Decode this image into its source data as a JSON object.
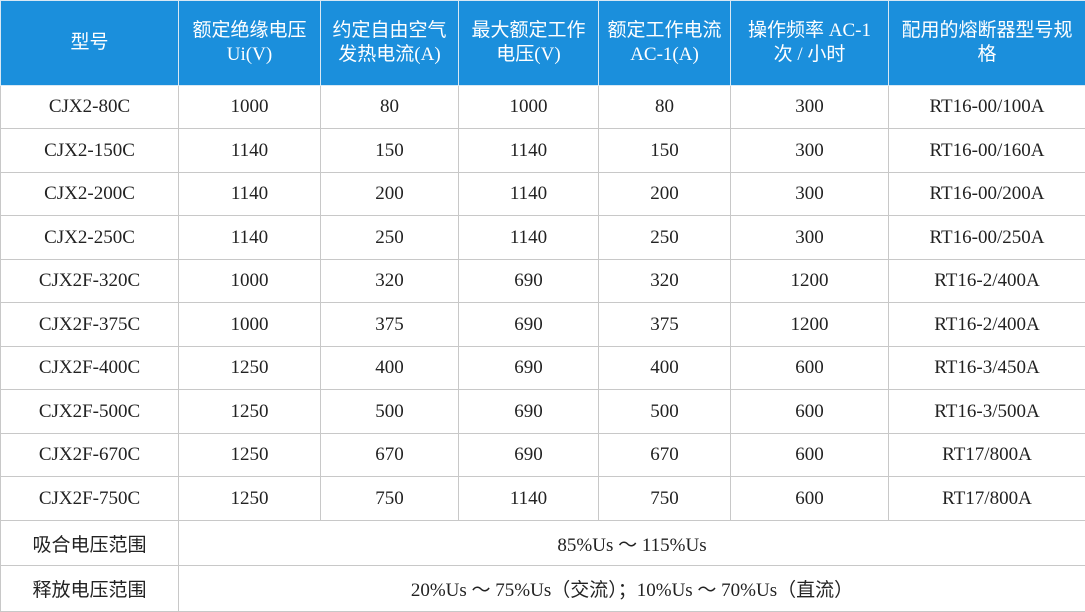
{
  "table": {
    "header": [
      "型号",
      "额定绝缘电压 Ui(V)",
      "约定自由空气发热电流(A)",
      "最大额定工作电压(V)",
      "额定工作电流 AC-1(A)",
      "操作频率 AC-1 次 / 小时",
      "配用的熔断器型号规格"
    ],
    "rows": [
      [
        "CJX2-80C",
        "1000",
        "80",
        "1000",
        "80",
        "300",
        "RT16-00/100A"
      ],
      [
        "CJX2-150C",
        "1140",
        "150",
        "1140",
        "150",
        "300",
        "RT16-00/160A"
      ],
      [
        "CJX2-200C",
        "1140",
        "200",
        "1140",
        "200",
        "300",
        "RT16-00/200A"
      ],
      [
        "CJX2-250C",
        "1140",
        "250",
        "1140",
        "250",
        "300",
        "RT16-00/250A"
      ],
      [
        "CJX2F-320C",
        "1000",
        "320",
        "690",
        "320",
        "1200",
        "RT16-2/400A"
      ],
      [
        "CJX2F-375C",
        "1000",
        "375",
        "690",
        "375",
        "1200",
        "RT16-2/400A"
      ],
      [
        "CJX2F-400C",
        "1250",
        "400",
        "690",
        "400",
        "600",
        "RT16-3/450A"
      ],
      [
        "CJX2F-500C",
        "1250",
        "500",
        "690",
        "500",
        "600",
        "RT16-3/500A"
      ],
      [
        "CJX2F-670C",
        "1250",
        "670",
        "690",
        "670",
        "600",
        "RT17/800A"
      ],
      [
        "CJX2F-750C",
        "1250",
        "750",
        "1140",
        "750",
        "600",
        "RT17/800A"
      ]
    ],
    "footer": [
      {
        "label": "吸合电压范围",
        "value": "85%Us ～ 115%Us"
      },
      {
        "label": "释放电压范围",
        "value": "20%Us ～ 75%Us（交流）；10%Us ～ 70%Us（直流）"
      }
    ]
  }
}
